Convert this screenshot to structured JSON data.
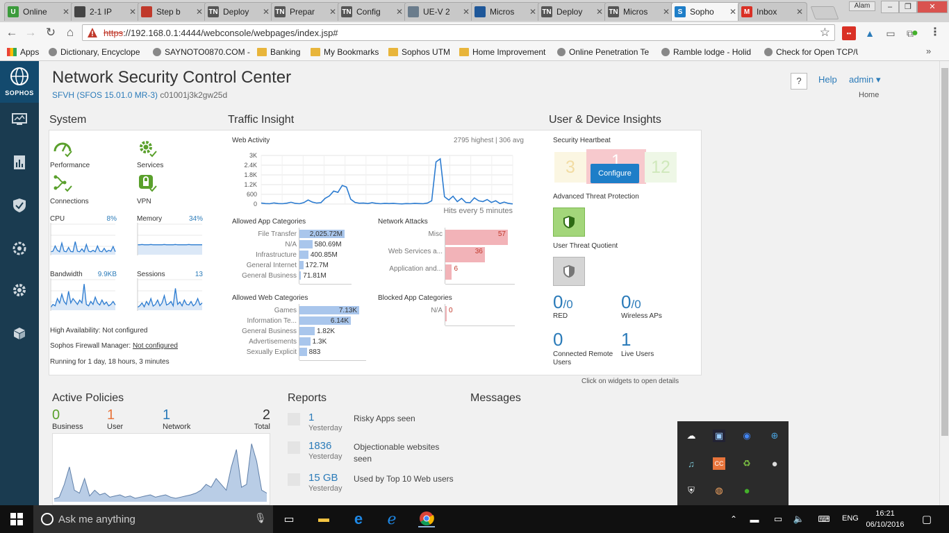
{
  "browser": {
    "tabs": [
      {
        "label": "Online",
        "color": "#3b9b3b",
        "glyph": "U"
      },
      {
        "label": "2-1 IP",
        "color": "#444444",
        "glyph": ""
      },
      {
        "label": "Step b",
        "color": "#c0392b",
        "glyph": ""
      },
      {
        "label": "Deploy",
        "color": "#555555",
        "glyph": "TN"
      },
      {
        "label": "Prepar",
        "color": "#555555",
        "glyph": "TN"
      },
      {
        "label": "Config",
        "color": "#555555",
        "glyph": "TN"
      },
      {
        "label": "UE-V 2",
        "color": "#6a7c8c",
        "glyph": ""
      },
      {
        "label": "Micros",
        "color": "#1e5799",
        "glyph": ""
      },
      {
        "label": "Deploy",
        "color": "#555555",
        "glyph": "TN"
      },
      {
        "label": "Micros",
        "color": "#555555",
        "glyph": "TN"
      },
      {
        "label": "Sopho",
        "color": "#1e7ec8",
        "glyph": "S",
        "active": true
      },
      {
        "label": "Inbox",
        "color": "#d93025",
        "glyph": "M"
      }
    ],
    "window_user": "Alam",
    "url_scheme": "https",
    "url_rest": "://192.168.0.1:4444/webconsole/webpages/index.jsp#",
    "bookmarks": [
      {
        "label": "Apps",
        "type": "apps"
      },
      {
        "label": "Dictionary, Encyclope",
        "type": "page"
      },
      {
        "label": "SAYNOTO0870.COM -",
        "type": "page"
      },
      {
        "label": "Banking",
        "type": "folder"
      },
      {
        "label": "My Bookmarks",
        "type": "folder"
      },
      {
        "label": "Sophos UTM",
        "type": "folder"
      },
      {
        "label": "Home Improvement",
        "type": "folder"
      },
      {
        "label": "Online Penetration Te",
        "type": "page"
      },
      {
        "label": "Ramble lodge - Holid",
        "type": "page"
      },
      {
        "label": "Check for Open TCP/U",
        "type": "page"
      }
    ],
    "bookmarks_more": "»"
  },
  "sidebar": {
    "brand": "SOPHOS",
    "items": [
      "monitor-icon",
      "report-icon",
      "shield-icon",
      "gear-wheel-icon",
      "gear-icon",
      "box-icon"
    ]
  },
  "header": {
    "title": "Network Security Control Center",
    "model": "SFVH (SFOS 15.01.0 MR-3)",
    "serial": "c01001j3k2gw25d",
    "help_q": "?",
    "help": "Help",
    "admin": "admin ▾",
    "home": "Home"
  },
  "system": {
    "title": "System",
    "performance": "Performance",
    "services": "Services",
    "connections": "Connections",
    "vpn": "VPN",
    "cpu_label": "CPU",
    "cpu_value": "8%",
    "memory_label": "Memory",
    "memory_value": "34%",
    "bandwidth_label": "Bandwidth",
    "bandwidth_value": "9.9KB",
    "sessions_label": "Sessions",
    "sessions_value": "13",
    "ha": "High Availability: Not configured",
    "sfm_label": "Sophos Firewall Manager:",
    "sfm_value": "Not configured",
    "uptime": "Running for 1 day, 18 hours, 3 minutes"
  },
  "traffic": {
    "title": "Traffic Insight",
    "web_activity": "Web Activity",
    "web_stats": "2795 highest | 306 avg",
    "hits_label": "Hits every 5 minutes",
    "yticks": [
      "3K",
      "2.4K",
      "1.8K",
      "1.2K",
      "600",
      "0"
    ],
    "allowed_app_title": "Allowed App Categories",
    "network_attacks_title": "Network Attacks",
    "allowed_web_title": "Allowed Web Categories",
    "blocked_app_title": "Blocked App Categories"
  },
  "chart_data": [
    {
      "type": "line",
      "title": "Web Activity",
      "xlabel": "Hits every 5 minutes",
      "ylabel": "",
      "ylim": [
        0,
        3000
      ],
      "y": [
        60,
        30,
        20,
        70,
        30,
        20,
        50,
        110,
        40,
        20,
        90,
        250,
        120,
        60,
        80,
        350,
        500,
        800,
        720,
        1150,
        1050,
        300,
        100,
        50,
        60,
        30,
        80,
        40,
        20,
        40,
        30,
        40,
        20,
        10,
        30,
        20,
        40,
        30,
        20,
        60,
        200,
        2600,
        2795,
        450,
        250,
        480,
        150,
        350,
        100,
        80,
        380,
        200,
        150,
        280,
        100,
        200,
        30,
        120,
        40,
        10
      ],
      "grid": true
    },
    {
      "type": "bar",
      "title": "Allowed App Categories",
      "categories": [
        "File Transfer",
        "N/A",
        "Infrastructure",
        "General Internet",
        "General Business"
      ],
      "values": [
        2025.72,
        580.69,
        400.85,
        172.7,
        71.81
      ],
      "labels": [
        "2,025.72M",
        "580.69M",
        "400.85M",
        "172.7M",
        "71.81M"
      ],
      "color": "#a9c6ec"
    },
    {
      "type": "bar",
      "title": "Network Attacks",
      "categories": [
        "Misc",
        "Web Services a...",
        "Application and..."
      ],
      "values": [
        57,
        36,
        6
      ],
      "labels": [
        "57",
        "36",
        "6"
      ],
      "color": "#f2b3b8"
    },
    {
      "type": "bar",
      "title": "Allowed Web Categories",
      "categories": [
        "Games",
        "Information Te...",
        "General Business",
        "Advertisements",
        "Sexually Explicit"
      ],
      "values": [
        7130,
        6140,
        1820,
        1300,
        883
      ],
      "labels": [
        "7.13K",
        "6.14K",
        "1.82K",
        "1.3K",
        "883"
      ],
      "color": "#a9c6ec"
    },
    {
      "type": "bar",
      "title": "Blocked App Categories",
      "categories": [
        "N/A"
      ],
      "values": [
        0
      ],
      "labels": [
        "0"
      ],
      "color": "#f2b3b8"
    },
    {
      "type": "line",
      "title": "CPU",
      "y": [
        10,
        12,
        30,
        15,
        10,
        40,
        12,
        10,
        25,
        11,
        10,
        45,
        12,
        10,
        20,
        10,
        35,
        12,
        10,
        15,
        10,
        30,
        12,
        10,
        22,
        10,
        15,
        12,
        28,
        10
      ]
    },
    {
      "type": "line",
      "title": "Memory",
      "y": [
        34,
        34,
        35,
        34,
        34,
        34,
        35,
        34,
        34,
        34,
        34,
        34,
        35,
        34,
        34,
        34,
        34,
        35,
        34,
        34,
        34,
        34,
        34,
        35,
        34,
        34,
        34,
        34,
        34,
        34
      ]
    },
    {
      "type": "line",
      "title": "Bandwidth",
      "y": [
        10,
        20,
        15,
        40,
        25,
        55,
        30,
        20,
        65,
        25,
        40,
        30,
        20,
        35,
        25,
        90,
        20,
        15,
        30,
        20,
        45,
        25,
        18,
        35,
        20,
        28,
        15,
        20,
        30,
        18
      ]
    },
    {
      "type": "line",
      "title": "Sessions",
      "y": [
        10,
        15,
        25,
        12,
        30,
        18,
        40,
        14,
        20,
        35,
        15,
        25,
        50,
        18,
        22,
        30,
        15,
        75,
        20,
        28,
        15,
        35,
        20,
        18,
        30,
        15,
        22,
        40,
        18,
        25
      ]
    },
    {
      "type": "area",
      "title": "Active Policies",
      "y": [
        5,
        8,
        30,
        60,
        20,
        15,
        40,
        10,
        20,
        12,
        15,
        8,
        10,
        12,
        8,
        10,
        6,
        8,
        10,
        12,
        8,
        10,
        12,
        8,
        6,
        8,
        10,
        12,
        15,
        20,
        30,
        25,
        40,
        30,
        20,
        60,
        90,
        25,
        30,
        100,
        70,
        20,
        15
      ]
    }
  ],
  "app_rows": [
    {
      "label": "File Transfer",
      "value": "2,025.72M"
    },
    {
      "label": "N/A",
      "value": "580.69M"
    },
    {
      "label": "Infrastructure",
      "value": "400.85M"
    },
    {
      "label": "General Internet",
      "value": "172.7M"
    },
    {
      "label": "General Business",
      "value": "71.81M"
    }
  ],
  "attack_rows": [
    {
      "label": "Misc",
      "value": "57"
    },
    {
      "label": "Web Services a...",
      "value": "36"
    },
    {
      "label": "Application and...",
      "value": "6"
    }
  ],
  "web_rows": [
    {
      "label": "Games",
      "value": "7.13K"
    },
    {
      "label": "Information Te...",
      "value": "6.14K"
    },
    {
      "label": "General Business",
      "value": "1.82K"
    },
    {
      "label": "Advertisements",
      "value": "1.3K"
    },
    {
      "label": "Sexually Explicit",
      "value": "883"
    }
  ],
  "blocked_rows": [
    {
      "label": "N/A",
      "value": "0"
    }
  ],
  "insights": {
    "title": "User & Device Insights",
    "heartbeat": "Security Heartbeat",
    "hb_yellow": "3",
    "hb_red": "1",
    "hb_green": "12",
    "configure": "Configure",
    "atp": "Advanced Threat Protection",
    "utq": "User Threat Quotient",
    "red_num": "0",
    "red_den": "/0",
    "red_label": "RED",
    "wap_num": "0",
    "wap_den": "/0",
    "wap_label": "Wireless APs",
    "remote_num": "0",
    "remote_label_1": "Connected Remote",
    "remote_label_2": "Users",
    "live_num": "1",
    "live_label": "Live Users",
    "hint": "Click on widgets to open details"
  },
  "policies": {
    "title": "Active Policies",
    "business": "0",
    "business_label": "Business",
    "user": "1",
    "user_label": "User",
    "network": "1",
    "network_label": "Network",
    "total": "2",
    "total_label": "Total"
  },
  "reports": {
    "title": "Reports",
    "items": [
      {
        "num": "1",
        "day": "Yesterday",
        "text": "Risky Apps seen"
      },
      {
        "num": "1836",
        "day": "Yesterday",
        "text": "Objectionable websites"
      },
      {
        "num": "15 GB",
        "day": "Yesterday",
        "text": "Used by Top 10 Web users"
      }
    ],
    "item2_line2": "seen"
  },
  "messages": {
    "title": "Messages"
  },
  "taskbar": {
    "search": "Ask me anything",
    "lang": "ENG",
    "time": "16:21",
    "date": "06/10/2016"
  },
  "colors": {
    "sidebar": "#1a3b50",
    "accent": "#2b7bb9",
    "green_ok": "#5aa02c",
    "orange": "#e8743b",
    "attack_bar": "#f2b3b8",
    "allowed_bar": "#a9c6ec"
  }
}
